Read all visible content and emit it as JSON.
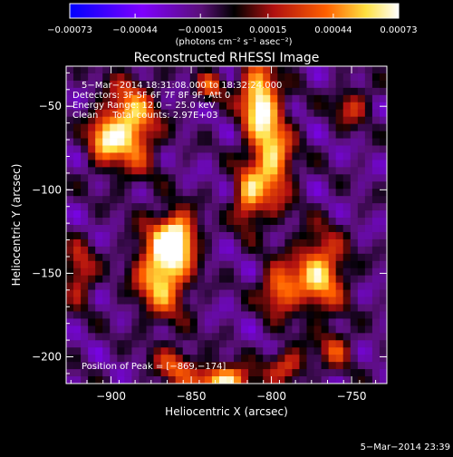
{
  "chart_data": {
    "type": "heatmap",
    "title": "Reconstructed RHESSI Image",
    "xlabel": "Heliocentric X (arcsec)",
    "ylabel": "Heliocentric Y (arcsec)",
    "xlim": [
      -928,
      -728
    ],
    "ylim": [
      -216,
      -26
    ],
    "x_ticks": [
      -900,
      -850,
      -800,
      -750
    ],
    "y_ticks": [
      -50,
      -100,
      -150,
      -200
    ],
    "x_tick_labels": [
      "−900",
      "−850",
      "−800",
      "−750"
    ],
    "y_tick_labels": [
      "−50",
      "−100",
      "−150",
      "−200"
    ],
    "colorbar": {
      "range": [
        -0.00073,
        0.00073
      ],
      "ticks": [
        -0.00073,
        -0.00044,
        -0.00015,
        0.00015,
        0.00044,
        0.00073
      ],
      "tick_labels": [
        "−0.00073",
        "−0.00044",
        "−0.00015",
        "0.00015",
        "0.00044",
        "0.00073"
      ],
      "units": "(photons cm⁻² s⁻¹ asec⁻²)",
      "colors": [
        "#0000ff",
        "#7f00ff",
        "#5a1078",
        "#000000",
        "#b01010",
        "#ff6000",
        "#ffe040",
        "#ffffff"
      ]
    },
    "annotations": {
      "time_range": "5−Mar−2014 18:31:08.000 to 18:32:24.000",
      "detectors": "Detectors: 3F 5F 6F 7F 8F 9F, Att 0",
      "energy": "Energy Range: 12.0 − 25.0 keV",
      "clean": "Clean     Total counts: 2.97E+03",
      "peak": "Position of Peak = [−869,−174]"
    },
    "sources": [
      {
        "x": -868,
        "y": -148,
        "sx": 11,
        "sy": 18,
        "amp": 0.00072
      },
      {
        "x": -858,
        "y": -128,
        "sx": 8,
        "sy": 10,
        "amp": 0.0006
      },
      {
        "x": -888,
        "y": -62,
        "sx": 11,
        "sy": 18,
        "amp": 0.00064
      },
      {
        "x": -905,
        "y": -70,
        "sx": 7,
        "sy": 10,
        "amp": 0.0004
      },
      {
        "x": -808,
        "y": -45,
        "sx": 8,
        "sy": 15,
        "amp": 0.00068
      },
      {
        "x": -800,
        "y": -82,
        "sx": 9,
        "sy": 20,
        "amp": 0.0006
      },
      {
        "x": -815,
        "y": -105,
        "sx": 6,
        "sy": 12,
        "amp": 0.00044
      },
      {
        "x": -770,
        "y": -150,
        "sx": 11,
        "sy": 16,
        "amp": 0.00058
      },
      {
        "x": -795,
        "y": -160,
        "sx": 8,
        "sy": 10,
        "amp": 0.00046
      },
      {
        "x": -830,
        "y": -214,
        "sx": 12,
        "sy": 6,
        "amp": 0.0007
      },
      {
        "x": -790,
        "y": -205,
        "sx": 9,
        "sy": 7,
        "amp": 0.0003
      },
      {
        "x": -920,
        "y": -150,
        "sx": 7,
        "sy": 12,
        "amp": 0.0003
      },
      {
        "x": -750,
        "y": -50,
        "sx": 8,
        "sy": 8,
        "amp": 0.00024
      },
      {
        "x": -860,
        "y": -205,
        "sx": 9,
        "sy": 8,
        "amp": 0.0003
      },
      {
        "x": -760,
        "y": -195,
        "sx": 7,
        "sy": 8,
        "amp": 0.00026
      },
      {
        "x": -838,
        "y": -38,
        "sx": 6,
        "sy": 6,
        "amp": 0.0003
      }
    ],
    "background": -0.00016
  },
  "footer": {
    "date": "5−Mar−2014 23:39"
  }
}
